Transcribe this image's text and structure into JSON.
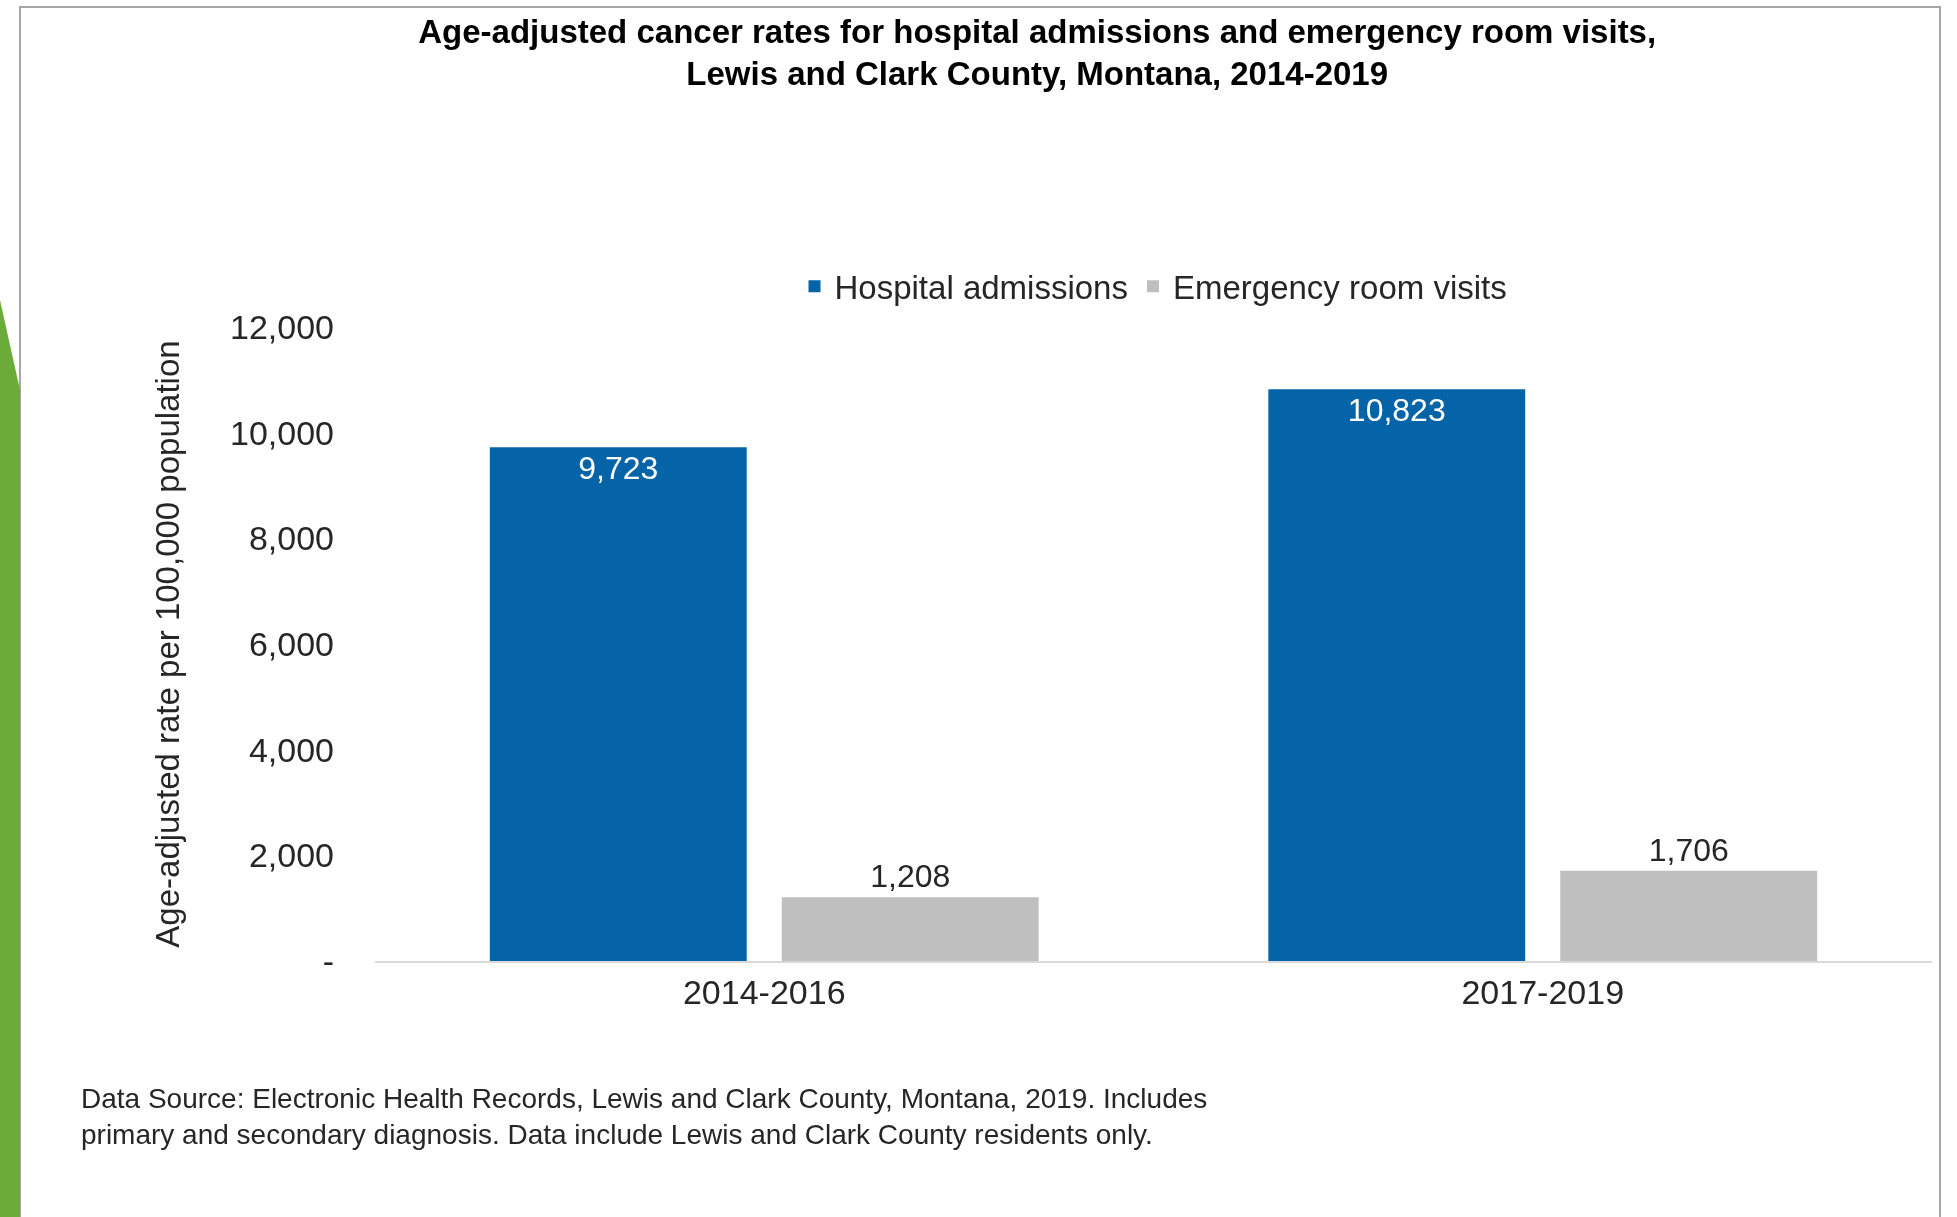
{
  "chart_data": {
    "type": "bar",
    "title": "Age-adjusted cancer rates for hospital admissions and emergency room visits,\nLewis and Clark County, Montana, 2014-2019",
    "ylabel": "Age-adjusted rate per 100,000 population",
    "categories": [
      "2014-2016",
      "2017-2019"
    ],
    "series": [
      {
        "name": "Hospital admissions",
        "color": "#0563a8",
        "values": [
          9723,
          10823
        ],
        "value_labels": [
          "9,723",
          "10,823"
        ]
      },
      {
        "name": "Emergency room visits",
        "color": "#bfbfbf",
        "values": [
          1208,
          1706
        ],
        "value_labels": [
          "1,208",
          "1,706"
        ]
      }
    ],
    "ylim": [
      0,
      12000
    ],
    "yticks": [
      {
        "value": 0,
        "label": "-"
      },
      {
        "value": 2000,
        "label": "2,000"
      },
      {
        "value": 4000,
        "label": "4,000"
      },
      {
        "value": 6000,
        "label": "6,000"
      },
      {
        "value": 8000,
        "label": "8,000"
      },
      {
        "value": 10000,
        "label": "10,000"
      },
      {
        "value": 12000,
        "label": "12,000"
      }
    ],
    "grid": false,
    "legend": "top",
    "annotations": [
      "Data Source: Electronic Health Records, Lewis and Clark County, Montana, 2019. Includes\nprimary and secondary diagnosis. Data include Lewis and Clark County residents only."
    ]
  }
}
